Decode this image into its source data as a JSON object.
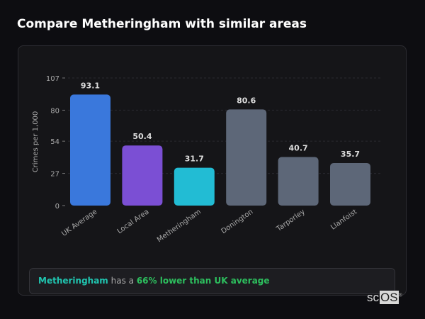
{
  "title": "Compare Metheringham with similar areas",
  "chart_data": {
    "type": "bar",
    "title": "",
    "xlabel": "",
    "ylabel": "Crimes per 1,000",
    "ylim": [
      0,
      107
    ],
    "yticks": [
      0,
      27,
      54,
      80,
      107
    ],
    "grid": true,
    "categories": [
      "UK Average",
      "Local Area",
      "Metheringham",
      "Donington",
      "Tarporley",
      "Llanfoist"
    ],
    "values": [
      93.1,
      50.4,
      31.7,
      80.6,
      40.7,
      35.7
    ],
    "value_labels": [
      "93.1",
      "50.4",
      "31.7",
      "80.6",
      "40.7",
      "35.7"
    ],
    "colors": [
      "#3a78dc",
      "#7b4fd4",
      "#22bcd4",
      "#5d6778",
      "#5d6778",
      "#5d6778"
    ]
  },
  "insight": {
    "area": "Metheringham",
    "middle": " has a ",
    "comparison": "66% lower than UK average"
  },
  "logo": {
    "text_a": "sc",
    "text_b": "OS",
    "mark": "®"
  }
}
